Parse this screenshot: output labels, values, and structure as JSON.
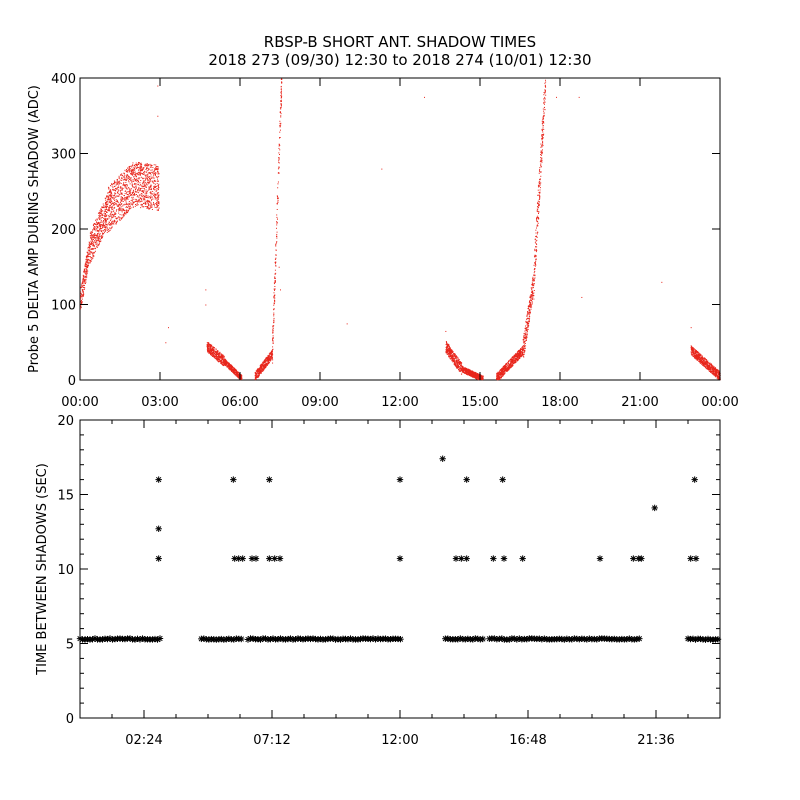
{
  "title": {
    "line1": "RBSP-B SHORT ANT. SHADOW TIMES",
    "line2": "2018 273 (09/30) 12:30 to 2018 274 (10/01) 12:30"
  },
  "colors": {
    "points": "#e8261c",
    "stars": "#000000",
    "axes": "#000000"
  },
  "chart_data": [
    {
      "type": "scatter",
      "ylabel": "Probe 5 DELTA AMP DURING SHADOW (ADC)",
      "xlim_hours": [
        0,
        24
      ],
      "ylim": [
        0,
        400
      ],
      "x_ticks": [
        "00:00",
        "03:00",
        "06:00",
        "09:00",
        "12:00",
        "15:00",
        "18:00",
        "21:00",
        "00:00"
      ],
      "y_ticks": [
        0,
        100,
        200,
        300,
        400
      ],
      "point_color": "#e8261c",
      "segments": [
        {
          "x_start": 0.0,
          "x_end": 0.35,
          "y_start": 105,
          "y_end": 175,
          "spread": 15
        },
        {
          "x_start": 0.35,
          "x_end": 1.0,
          "y_start": 175,
          "y_end": 225,
          "spread": 22
        },
        {
          "x_start": 1.0,
          "x_end": 2.0,
          "y_start": 225,
          "y_end": 260,
          "spread": 30
        },
        {
          "x_start": 2.0,
          "x_end": 2.95,
          "y_start": 260,
          "y_end": 255,
          "spread": 30
        },
        {
          "x_start": 4.75,
          "x_end": 5.4,
          "y_start": 45,
          "y_end": 25,
          "spread": 7
        },
        {
          "x_start": 5.4,
          "x_end": 6.05,
          "y_start": 25,
          "y_end": 3,
          "spread": 4
        },
        {
          "x_start": 6.55,
          "x_end": 7.2,
          "y_start": 5,
          "y_end": 35,
          "spread": 6
        },
        {
          "x_start": 7.2,
          "x_end": 7.55,
          "y_start": 40,
          "y_end": 400,
          "spread": 20
        },
        {
          "x_start": 13.7,
          "x_end": 14.3,
          "y_start": 45,
          "y_end": 15,
          "spread": 8
        },
        {
          "x_start": 14.3,
          "x_end": 15.1,
          "y_start": 15,
          "y_end": 2,
          "spread": 4
        },
        {
          "x_start": 15.6,
          "x_end": 16.6,
          "y_start": 3,
          "y_end": 40,
          "spread": 6
        },
        {
          "x_start": 16.6,
          "x_end": 17.0,
          "y_start": 40,
          "y_end": 130,
          "spread": 15
        },
        {
          "x_start": 17.0,
          "x_end": 17.45,
          "y_start": 130,
          "y_end": 400,
          "spread": 25
        },
        {
          "x_start": 22.9,
          "x_end": 24.0,
          "y_start": 40,
          "y_end": 5,
          "spread": 6
        }
      ],
      "isolated_points": [
        [
          0.2,
          130
        ],
        [
          2.9,
          390
        ],
        [
          2.9,
          350
        ],
        [
          3.3,
          70
        ],
        [
          3.2,
          50
        ],
        [
          4.7,
          120
        ],
        [
          4.7,
          100
        ],
        [
          7.45,
          150
        ],
        [
          7.5,
          120
        ],
        [
          10.0,
          75
        ],
        [
          11.3,
          280
        ],
        [
          12.9,
          375
        ],
        [
          13.7,
          65
        ],
        [
          18.7,
          375
        ],
        [
          18.8,
          110
        ],
        [
          21.8,
          130
        ],
        [
          22.9,
          70
        ],
        [
          17.85,
          375
        ]
      ]
    },
    {
      "type": "scatter",
      "ylabel": "TIME BETWEEN SHADOWS (SEC)",
      "xlim_hours": [
        0,
        24
      ],
      "ylim": [
        0,
        20
      ],
      "x_ticks": [
        "02:24",
        "07:12",
        "12:00",
        "16:48",
        "21:36"
      ],
      "y_ticks": [
        0,
        5,
        10,
        15,
        20
      ],
      "marker": "*",
      "baseline_value": 5.3,
      "baseline_ranges": [
        [
          0.0,
          3.05
        ],
        [
          4.55,
          6.1
        ],
        [
          6.3,
          12.05
        ],
        [
          13.7,
          15.15
        ],
        [
          15.35,
          21.05
        ],
        [
          22.8,
          24.0
        ]
      ],
      "points": [
        [
          2.95,
          16
        ],
        [
          2.95,
          12.7
        ],
        [
          2.95,
          10.7
        ],
        [
          5.75,
          16
        ],
        [
          5.8,
          10.7
        ],
        [
          5.95,
          10.7
        ],
        [
          6.1,
          10.7
        ],
        [
          6.45,
          10.7
        ],
        [
          6.6,
          10.7
        ],
        [
          7.1,
          16
        ],
        [
          7.1,
          10.7
        ],
        [
          7.3,
          10.7
        ],
        [
          7.5,
          10.7
        ],
        [
          12.0,
          16
        ],
        [
          12.0,
          10.7
        ],
        [
          13.6,
          17.4
        ],
        [
          14.1,
          10.7
        ],
        [
          14.3,
          10.7
        ],
        [
          14.5,
          10.7
        ],
        [
          14.5,
          16
        ],
        [
          15.5,
          10.7
        ],
        [
          15.85,
          16
        ],
        [
          15.9,
          10.7
        ],
        [
          16.6,
          10.7
        ],
        [
          19.5,
          10.7
        ],
        [
          20.75,
          10.7
        ],
        [
          20.95,
          10.7
        ],
        [
          21.05,
          10.7
        ],
        [
          21.55,
          14.1
        ],
        [
          22.9,
          10.7
        ],
        [
          23.1,
          10.7
        ],
        [
          23.05,
          16
        ]
      ]
    }
  ]
}
